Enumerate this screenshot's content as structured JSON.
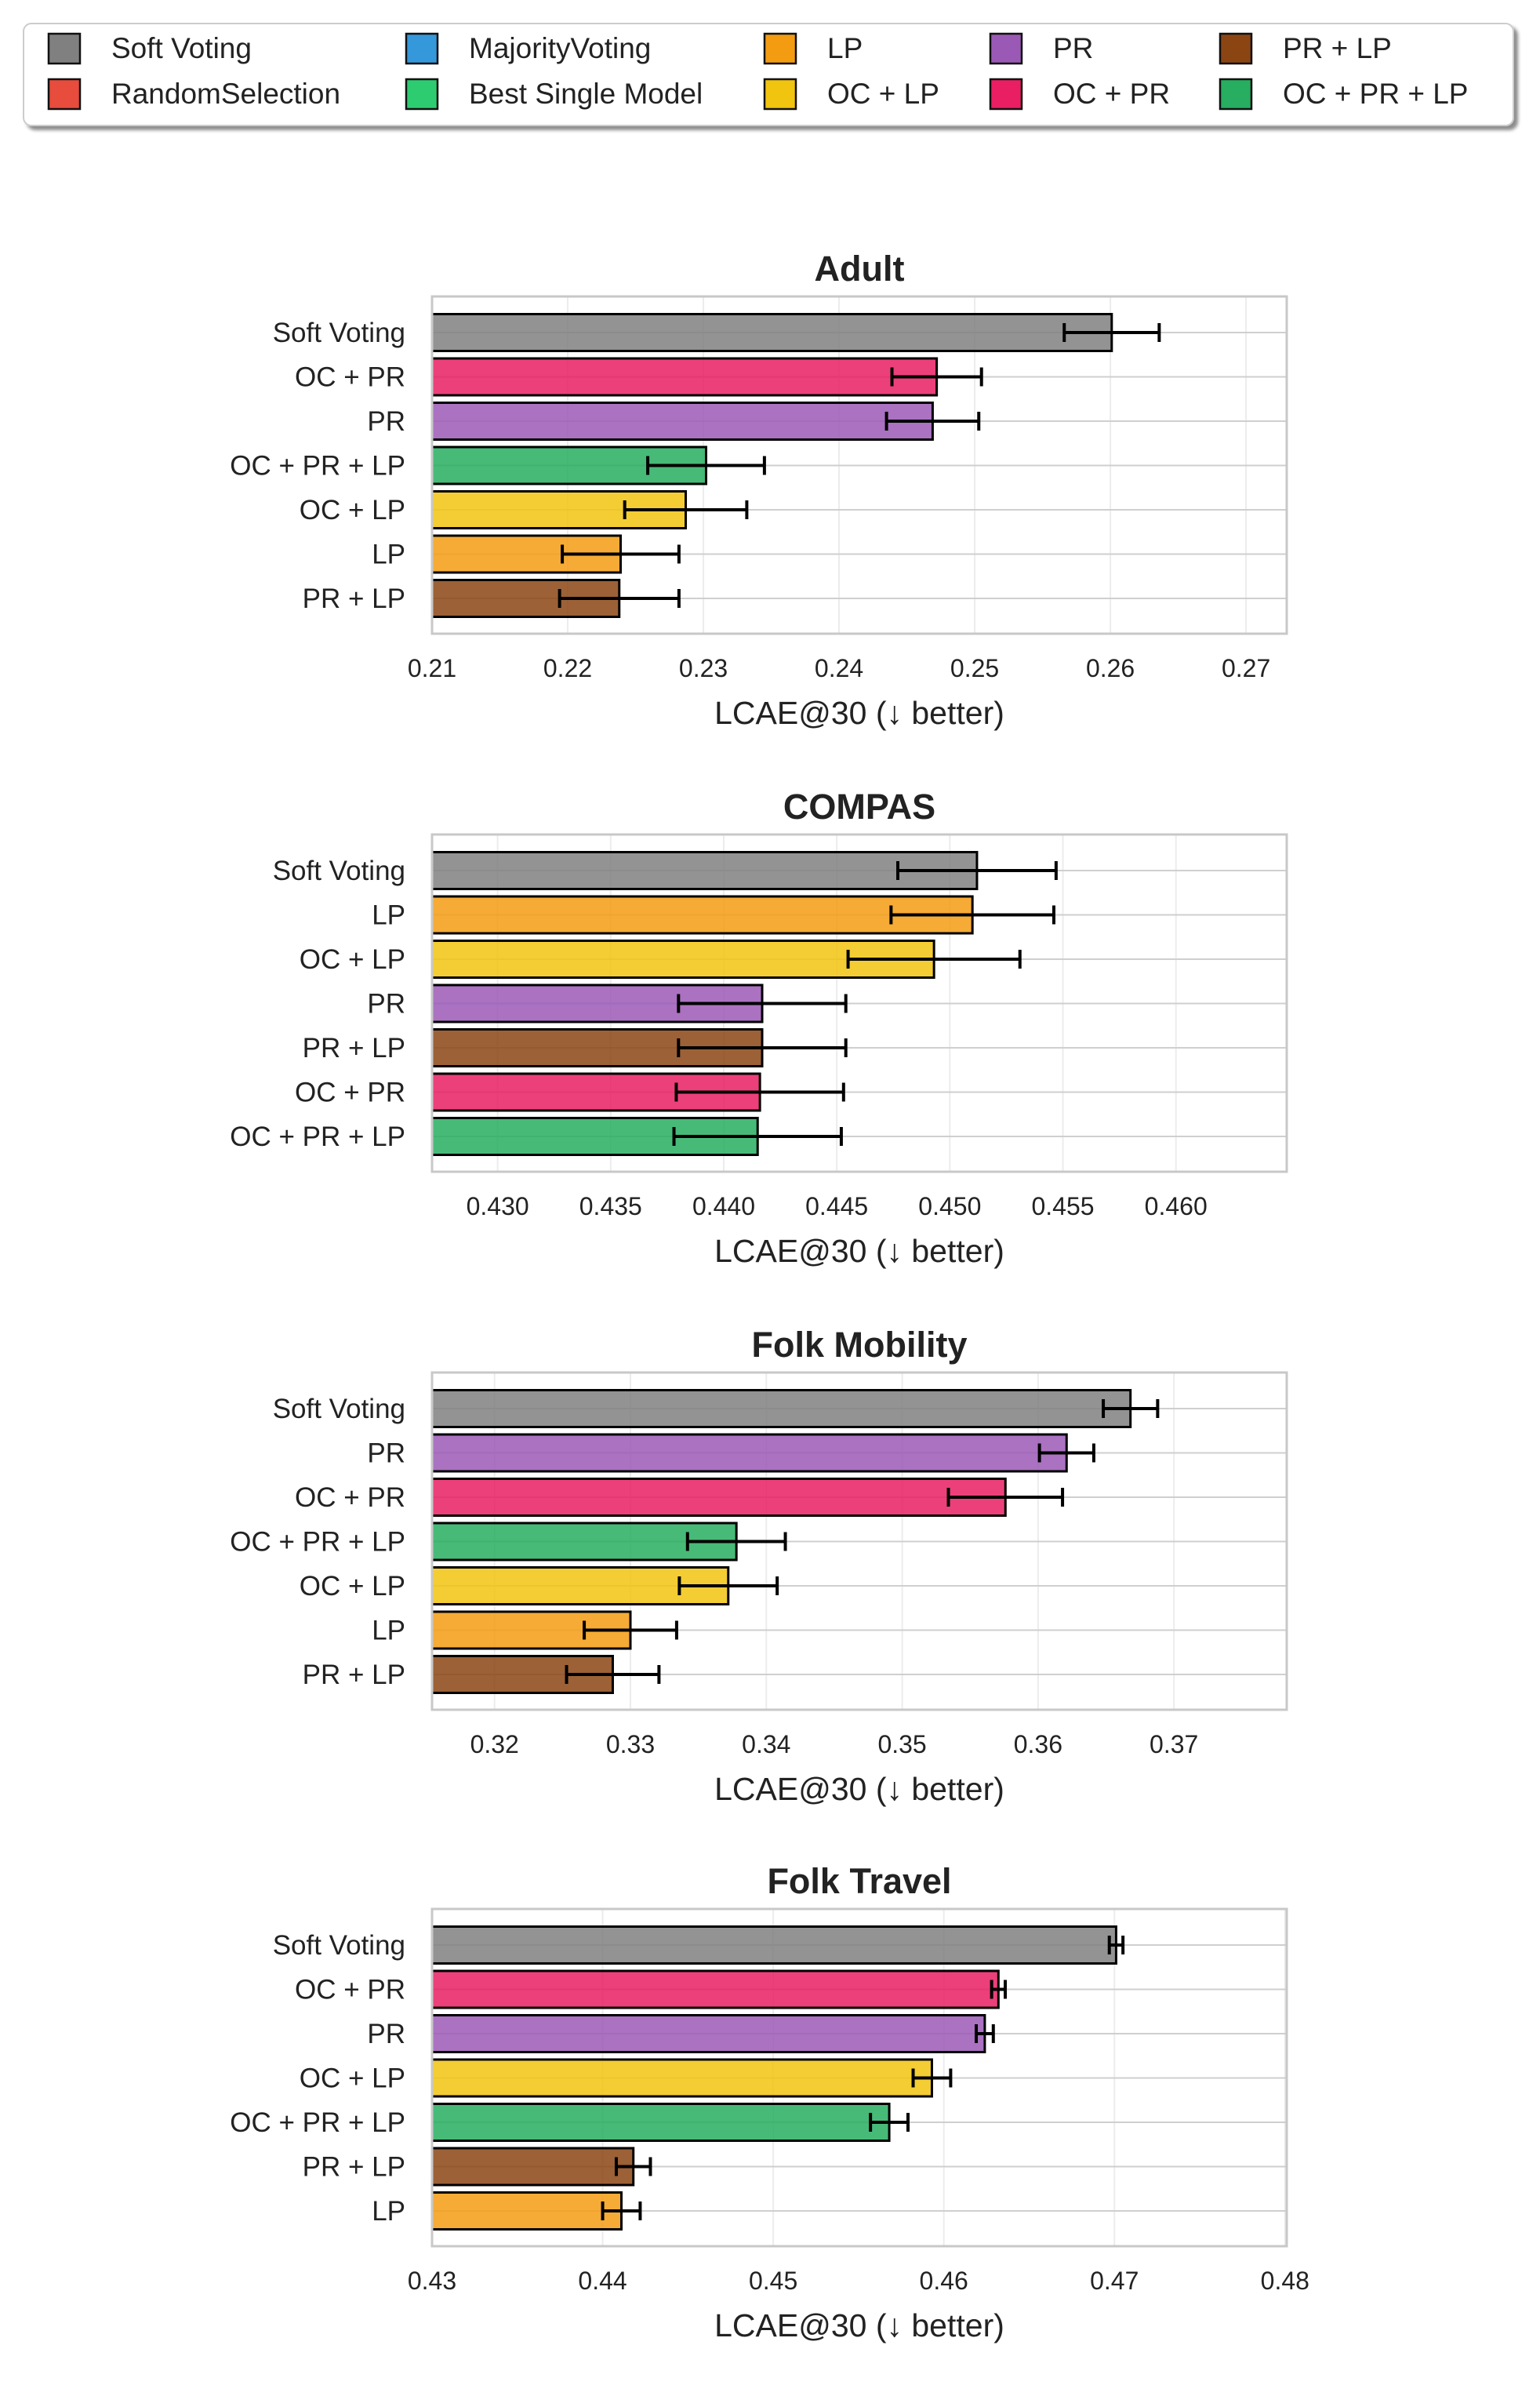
{
  "legend": {
    "items": [
      {
        "label": "Soft Voting",
        "color": "#808080"
      },
      {
        "label": "RandomSelection",
        "color": "#e74c3c"
      },
      {
        "label": "MajorityVoting",
        "color": "#3498db"
      },
      {
        "label": "Best Single Model",
        "color": "#2ecc71"
      },
      {
        "label": "LP",
        "color": "#f39c12"
      },
      {
        "label": "OC + LP",
        "color": "#f1c40f"
      },
      {
        "label": "PR",
        "color": "#9b59b6"
      },
      {
        "label": "OC + PR",
        "color": "#e91e63"
      },
      {
        "label": "PR + LP",
        "color": "#8b4513"
      },
      {
        "label": "OC + PR + LP",
        "color": "#27ae60"
      }
    ]
  },
  "chart_data": [
    {
      "type": "bar",
      "orientation": "horizontal",
      "title": "Adult",
      "xlabel": "LCAE@30 (↓ better)",
      "xlim": [
        0.21,
        0.273
      ],
      "xticks": [
        "0.21",
        "0.22",
        "0.23",
        "0.24",
        "0.25",
        "0.26",
        "0.27"
      ],
      "grid": true,
      "categories": [
        "Soft Voting",
        "OC + PR",
        "PR",
        "OC + PR + LP",
        "OC + LP",
        "LP",
        "PR + LP"
      ],
      "values": [
        0.2601,
        0.2472,
        0.2469,
        0.2302,
        0.2287,
        0.2239,
        0.2238
      ],
      "errors": [
        0.0035,
        0.0033,
        0.0034,
        0.0043,
        0.0045,
        0.0043,
        0.0044
      ]
    },
    {
      "type": "bar",
      "orientation": "horizontal",
      "title": "COMPAS",
      "xlabel": "LCAE@30 (↓ better)",
      "xlim": [
        0.4271,
        0.4649
      ],
      "xticks": [
        "0.430",
        "0.435",
        "0.440",
        "0.445",
        "0.450",
        "0.455",
        "0.460"
      ],
      "grid": true,
      "categories": [
        "Soft Voting",
        "LP",
        "OC + LP",
        "PR",
        "PR + LP",
        "OC + PR",
        "OC + PR + LP"
      ],
      "values": [
        0.4512,
        0.451,
        0.4493,
        0.4417,
        0.4417,
        0.4416,
        0.4415
      ],
      "errors": [
        0.0035,
        0.0036,
        0.0038,
        0.0037,
        0.0037,
        0.0037,
        0.0037
      ]
    },
    {
      "type": "bar",
      "orientation": "horizontal",
      "title": "Folk Mobility",
      "xlabel": "LCAE@30 (↓ better)",
      "xlim": [
        0.3154,
        0.3783
      ],
      "xticks": [
        "0.32",
        "0.33",
        "0.34",
        "0.35",
        "0.36",
        "0.37"
      ],
      "grid": true,
      "categories": [
        "Soft Voting",
        "PR",
        "OC + PR",
        "OC + PR + LP",
        "OC + LP",
        "LP",
        "PR + LP"
      ],
      "values": [
        0.3668,
        0.3621,
        0.3576,
        0.3378,
        0.3372,
        0.33,
        0.3287
      ],
      "errors": [
        0.002,
        0.002,
        0.0042,
        0.0036,
        0.0036,
        0.0034,
        0.0034
      ]
    },
    {
      "type": "bar",
      "orientation": "horizontal",
      "title": "Folk Travel",
      "xlabel": "LCAE@30 (↓ better)",
      "xlim": [
        0.43,
        0.4801
      ],
      "xticks": [
        "0.43",
        "0.44",
        "0.45",
        "0.46",
        "0.47",
        "0.48"
      ],
      "grid": true,
      "categories": [
        "Soft Voting",
        "OC + PR",
        "PR",
        "OC + LP",
        "OC + PR + LP",
        "PR + LP",
        "LP"
      ],
      "values": [
        0.4701,
        0.4632,
        0.4624,
        0.4593,
        0.4568,
        0.4418,
        0.4411
      ],
      "errors": [
        0.0004,
        0.0004,
        0.0005,
        0.0011,
        0.0011,
        0.001,
        0.0011
      ]
    }
  ]
}
